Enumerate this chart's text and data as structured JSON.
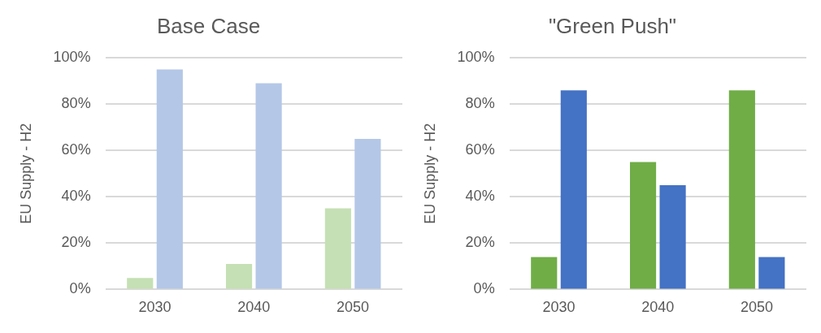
{
  "chart_data": [
    {
      "type": "bar",
      "title": "Base Case",
      "ylabel": "EU Supply - H2",
      "categories": [
        "2030",
        "2040",
        "2050"
      ],
      "series": [
        {
          "color": "#c5e0b4",
          "values": [
            5,
            11,
            35
          ]
        },
        {
          "color": "#b4c7e7",
          "values": [
            95,
            89,
            65
          ]
        }
      ],
      "ylim": [
        0,
        100
      ],
      "yticks": [
        {
          "value": 0,
          "label": "0%"
        },
        {
          "value": 20,
          "label": "20%"
        },
        {
          "value": 40,
          "label": "40%"
        },
        {
          "value": 60,
          "label": "60%"
        },
        {
          "value": 80,
          "label": "80%"
        },
        {
          "value": 100,
          "label": "100%"
        }
      ],
      "grid": "y"
    },
    {
      "type": "bar",
      "title": "\"Green Push\"",
      "ylabel": "EU Supply - H2",
      "categories": [
        "2030",
        "2040",
        "2050"
      ],
      "series": [
        {
          "color": "#70ad47",
          "values": [
            14,
            55,
            86
          ]
        },
        {
          "color": "#4472c4",
          "values": [
            86,
            45,
            14
          ]
        }
      ],
      "ylim": [
        0,
        100
      ],
      "yticks": [
        {
          "value": 0,
          "label": "0%"
        },
        {
          "value": 20,
          "label": "20%"
        },
        {
          "value": 40,
          "label": "40%"
        },
        {
          "value": 60,
          "label": "60%"
        },
        {
          "value": 80,
          "label": "80%"
        },
        {
          "value": 100,
          "label": "100%"
        }
      ],
      "grid": "y"
    }
  ]
}
